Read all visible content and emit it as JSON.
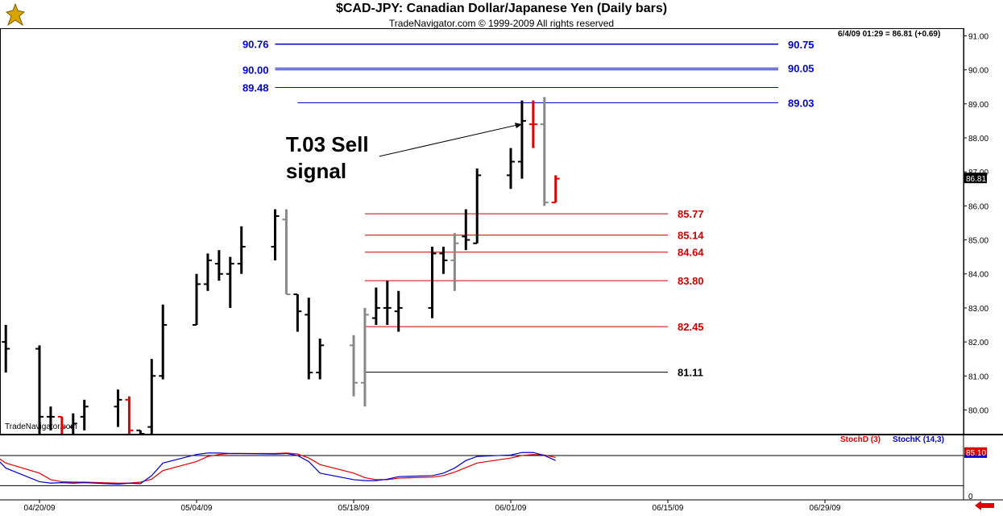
{
  "header": {
    "title": "$CAD-JPY:  Canadian Dollar/Japanese Yen  (Daily bars)",
    "subtitle": "TradeNavigator.com © 1999-2009 All rights reserved",
    "readout": "6/4/09 01:29 = 86.81 (+0.69)",
    "watermark": "TradeNavigator.com"
  },
  "colors": {
    "up_bar": "#000000",
    "down_bar": "#888888",
    "signal_bar": "#e00000",
    "resistance": "#0000cc",
    "support": "#cc0000",
    "support_base": "#000000",
    "stochD": "#e00000",
    "stochK": "#0000cc",
    "axis": "#000000"
  },
  "chart_data": [
    {
      "type": "ohlc",
      "ylim": [
        79.3,
        91.2
      ],
      "y_ticks": [
        80,
        81,
        82,
        83,
        84,
        85,
        86,
        87,
        88,
        89,
        90,
        91
      ],
      "y_tick_labels": [
        "80.00",
        "81.00",
        "82.00",
        "83.00",
        "84.00",
        "85.00",
        "86.00",
        "87.00",
        "88.00",
        "89.00",
        "90.00",
        "91.00"
      ],
      "x_dates": [
        "04/20/09",
        "05/04/09",
        "05/18/09",
        "06/01/09",
        "06/15/09",
        "06/29/09"
      ],
      "last_price_label": "86.81",
      "bars": [
        {
          "d": "04/15/09",
          "o": 82.3,
          "h": 82.9,
          "l": 81.8,
          "c": 82.5,
          "col": "up"
        },
        {
          "d": "04/16/09",
          "o": 82.4,
          "h": 82.5,
          "l": 81.2,
          "c": 82.1,
          "col": "up"
        },
        {
          "d": "04/17/09",
          "o": 82.0,
          "h": 82.5,
          "l": 81.1,
          "c": 81.8,
          "col": "up"
        },
        {
          "d": "04/20/09",
          "o": 81.8,
          "h": 81.9,
          "l": 79.3,
          "c": 79.8,
          "col": "up"
        },
        {
          "d": "04/21/09",
          "o": 79.8,
          "h": 80.1,
          "l": 79.4,
          "c": 79.8,
          "col": "up"
        },
        {
          "d": "04/22/09",
          "o": 79.8,
          "h": 79.8,
          "l": 79.3,
          "c": 79.5,
          "col": "signal"
        },
        {
          "d": "04/23/09",
          "o": 79.5,
          "h": 79.9,
          "l": 79.3,
          "c": 79.6,
          "col": "up"
        },
        {
          "d": "04/24/09",
          "o": 79.8,
          "h": 80.3,
          "l": 79.4,
          "c": 80.1,
          "col": "up"
        },
        {
          "d": "04/27/09",
          "o": 80.1,
          "h": 80.6,
          "l": 79.5,
          "c": 80.3,
          "col": "up"
        },
        {
          "d": "04/28/09",
          "o": 80.3,
          "h": 80.4,
          "l": 79.3,
          "c": 79.4,
          "col": "signal"
        },
        {
          "d": "04/29/09",
          "o": 79.4,
          "h": 79.4,
          "l": 79.3,
          "c": 79.3,
          "col": "up"
        },
        {
          "d": "04/30/09",
          "o": 79.5,
          "h": 81.5,
          "l": 79.3,
          "c": 81.0,
          "col": "up"
        },
        {
          "d": "05/01/09",
          "o": 81.0,
          "h": 83.1,
          "l": 80.9,
          "c": 82.5,
          "col": "up"
        },
        {
          "d": "05/04/09",
          "o": 82.5,
          "h": 84.0,
          "l": 82.5,
          "c": 83.7,
          "col": "up"
        },
        {
          "d": "05/05/09",
          "o": 83.7,
          "h": 84.6,
          "l": 83.5,
          "c": 84.4,
          "col": "up"
        },
        {
          "d": "05/06/09",
          "o": 84.3,
          "h": 84.7,
          "l": 83.8,
          "c": 84.0,
          "col": "up"
        },
        {
          "d": "05/07/09",
          "o": 84.0,
          "h": 84.5,
          "l": 83.0,
          "c": 84.3,
          "col": "up"
        },
        {
          "d": "05/08/09",
          "o": 84.3,
          "h": 85.4,
          "l": 84.0,
          "c": 84.8,
          "col": "up"
        },
        {
          "d": "05/11/09",
          "o": 84.8,
          "h": 85.9,
          "l": 84.4,
          "c": 85.7,
          "col": "up"
        },
        {
          "d": "05/12/09",
          "o": 85.6,
          "h": 85.9,
          "l": 83.4,
          "c": 83.4,
          "col": "down"
        },
        {
          "d": "05/13/09",
          "o": 83.4,
          "h": 83.4,
          "l": 82.3,
          "c": 82.9,
          "col": "up"
        },
        {
          "d": "05/14/09",
          "o": 82.8,
          "h": 83.3,
          "l": 80.9,
          "c": 81.1,
          "col": "up"
        },
        {
          "d": "05/15/09",
          "o": 81.1,
          "h": 82.1,
          "l": 80.9,
          "c": 81.9,
          "col": "up"
        },
        {
          "d": "05/18/09",
          "o": 81.9,
          "h": 82.2,
          "l": 80.4,
          "c": 80.8,
          "col": "down"
        },
        {
          "d": "05/19/09",
          "o": 80.8,
          "h": 83.0,
          "l": 80.1,
          "c": 82.8,
          "col": "down"
        },
        {
          "d": "05/20/09",
          "o": 82.7,
          "h": 83.6,
          "l": 82.5,
          "c": 83.0,
          "col": "up"
        },
        {
          "d": "05/21/09",
          "o": 83.0,
          "h": 83.8,
          "l": 82.5,
          "c": 83.0,
          "col": "up"
        },
        {
          "d": "05/22/09",
          "o": 82.9,
          "h": 83.5,
          "l": 82.3,
          "c": 83.0,
          "col": "up"
        },
        {
          "d": "05/25/09",
          "o": 83.0,
          "h": 84.8,
          "l": 82.7,
          "c": 84.6,
          "col": "up"
        },
        {
          "d": "05/26/09",
          "o": 84.6,
          "h": 84.8,
          "l": 84.0,
          "c": 84.4,
          "col": "up"
        },
        {
          "d": "05/27/09",
          "o": 84.4,
          "h": 85.2,
          "l": 83.5,
          "c": 84.9,
          "col": "down"
        },
        {
          "d": "05/28/09",
          "o": 85.1,
          "h": 85.9,
          "l": 84.7,
          "c": 85.0,
          "col": "up"
        },
        {
          "d": "05/29/09",
          "o": 84.9,
          "h": 87.1,
          "l": 84.9,
          "c": 86.9,
          "col": "up"
        },
        {
          "d": "06/01/09",
          "o": 86.9,
          "h": 87.7,
          "l": 86.5,
          "c": 87.3,
          "col": "up"
        },
        {
          "d": "06/02/09",
          "o": 87.3,
          "h": 89.1,
          "l": 86.8,
          "c": 88.5,
          "col": "up"
        },
        {
          "d": "06/03/09",
          "o": 88.4,
          "h": 89.1,
          "l": 87.7,
          "c": 88.4,
          "col": "signal"
        },
        {
          "d": "06/04/09",
          "o": 88.4,
          "h": 89.2,
          "l": 86.0,
          "c": 86.1,
          "col": "down"
        },
        {
          "d": "06/05/09",
          "o": 86.1,
          "h": 86.9,
          "l": 86.1,
          "c": 86.8,
          "col": "signal"
        }
      ],
      "levels": [
        {
          "value": 90.76,
          "label": "90.76",
          "side": "left",
          "color": "resistance",
          "from": "05/11/09",
          "to": "06/29/09"
        },
        {
          "value": 90.75,
          "label": "90.75",
          "side": "right",
          "color": "resistance",
          "from": "05/11/09",
          "to": "06/29/09"
        },
        {
          "value": 90.0,
          "label": "90.00",
          "side": "left",
          "color": "resistance",
          "from": "05/11/09",
          "to": "06/29/09"
        },
        {
          "value": 90.05,
          "label": "90.05",
          "side": "right",
          "color": "resistance",
          "from": "05/11/09",
          "to": "06/29/09"
        },
        {
          "value": 89.48,
          "label": "89.48",
          "side": "left",
          "color": "resistance",
          "from": "05/11/09",
          "to": "06/29/09"
        },
        {
          "value": 89.03,
          "label": "89.03",
          "side": "right",
          "color": "resistance",
          "from": "05/13/09",
          "to": "06/29/09"
        },
        {
          "value": 85.77,
          "label": "85.77",
          "side": "right",
          "color": "support",
          "from": "05/19/09",
          "to": "06/15/09"
        },
        {
          "value": 85.14,
          "label": "85.14",
          "side": "right",
          "color": "support",
          "from": "05/19/09",
          "to": "06/15/09"
        },
        {
          "value": 84.64,
          "label": "84.64",
          "side": "right",
          "color": "support",
          "from": "05/19/09",
          "to": "06/15/09"
        },
        {
          "value": 83.8,
          "label": "83.80",
          "side": "right",
          "color": "support",
          "from": "05/19/09",
          "to": "06/15/09"
        },
        {
          "value": 82.45,
          "label": "82.45",
          "side": "right",
          "color": "support",
          "from": "05/19/09",
          "to": "06/15/09"
        },
        {
          "value": 81.11,
          "label": "81.11",
          "side": "right",
          "color": "support_base",
          "from": "05/19/09",
          "to": "06/15/09"
        }
      ],
      "annotation": {
        "lines": [
          "T.03 Sell",
          "signal"
        ],
        "arrow_to": {
          "date": "06/02/09",
          "value": 88.4
        }
      }
    },
    {
      "type": "line",
      "title_series": [
        "StochD (3)",
        "StochK (14,3)"
      ],
      "ylim": [
        -5,
        120
      ],
      "y_ticks": [
        0
      ],
      "y_tick_labels": [
        "0"
      ],
      "current_label": "85.10",
      "reference_lines": [
        80,
        20
      ],
      "series": [
        {
          "name": "StochD (3)",
          "color": "stochD",
          "values": [
            80,
            80,
            65,
            45,
            32,
            28,
            27,
            27,
            25,
            25,
            27,
            33,
            50,
            68,
            78,
            82,
            84,
            84,
            84,
            85,
            83,
            75,
            62,
            45,
            36,
            32,
            32,
            35,
            37,
            40,
            47,
            56,
            65,
            75,
            80,
            82,
            81,
            76
          ]
        },
        {
          "name": "StochK (14,3)",
          "color": "stochK",
          "values": [
            80,
            78,
            55,
            28,
            25,
            26,
            25,
            26,
            23,
            25,
            24,
            40,
            65,
            82,
            85,
            85,
            84,
            84,
            83,
            84,
            80,
            68,
            45,
            32,
            30,
            30,
            33,
            38,
            40,
            45,
            55,
            70,
            78,
            81,
            86,
            86,
            80,
            70
          ]
        }
      ]
    }
  ]
}
